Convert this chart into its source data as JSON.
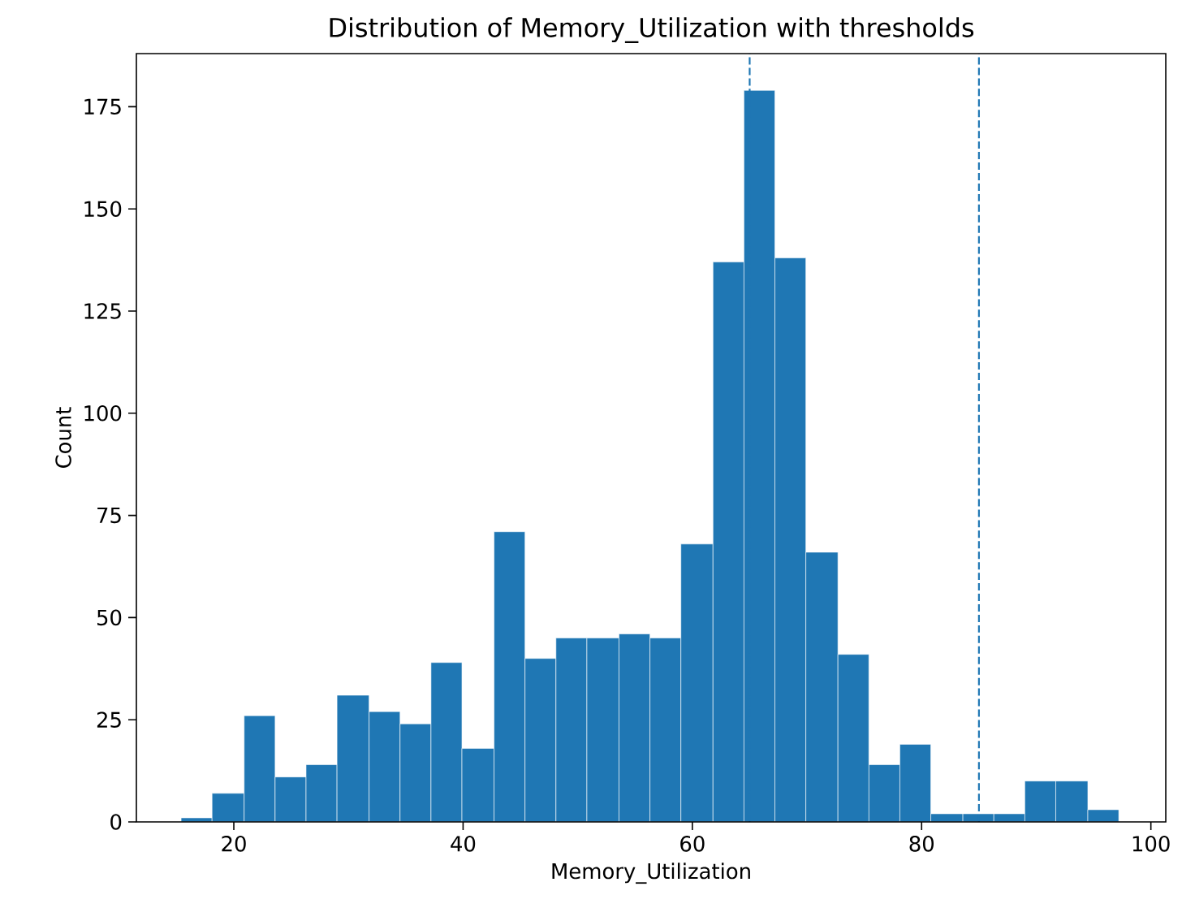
{
  "chart_data": {
    "type": "histogram",
    "title": "Distribution of Memory_Utilization with thresholds",
    "xlabel": "Memory_Utilization",
    "ylabel": "Count",
    "bins": [
      15.4,
      18.1,
      20.9,
      23.6,
      26.3,
      29.0,
      31.8,
      34.5,
      37.2,
      39.9,
      42.7,
      45.4,
      48.1,
      50.8,
      53.6,
      56.3,
      59.0,
      61.8,
      64.5,
      67.2,
      69.9,
      72.7,
      75.4,
      78.1,
      80.8,
      83.6,
      86.3,
      89.0,
      91.7,
      94.5,
      97.2
    ],
    "values": [
      1,
      7,
      26,
      11,
      14,
      31,
      27,
      24,
      39,
      18,
      71,
      40,
      45,
      45,
      46,
      45,
      68,
      137,
      179,
      138,
      66,
      41,
      14,
      19,
      2,
      2,
      2,
      10,
      10,
      3
    ],
    "color": "#1f77b4",
    "xlim": [
      11.5,
      101.3
    ],
    "ylim": [
      0,
      188
    ],
    "xticks": [
      20,
      40,
      60,
      80,
      100
    ],
    "yticks": [
      0,
      25,
      50,
      75,
      100,
      125,
      150,
      175
    ],
    "ref_lines": [
      {
        "axis": "x",
        "value": 65,
        "color": "#1f77b4",
        "line_style": "dashed"
      },
      {
        "axis": "x",
        "value": 85,
        "color": "#1f77b4",
        "line_style": "dashed"
      }
    ],
    "grid": false
  }
}
